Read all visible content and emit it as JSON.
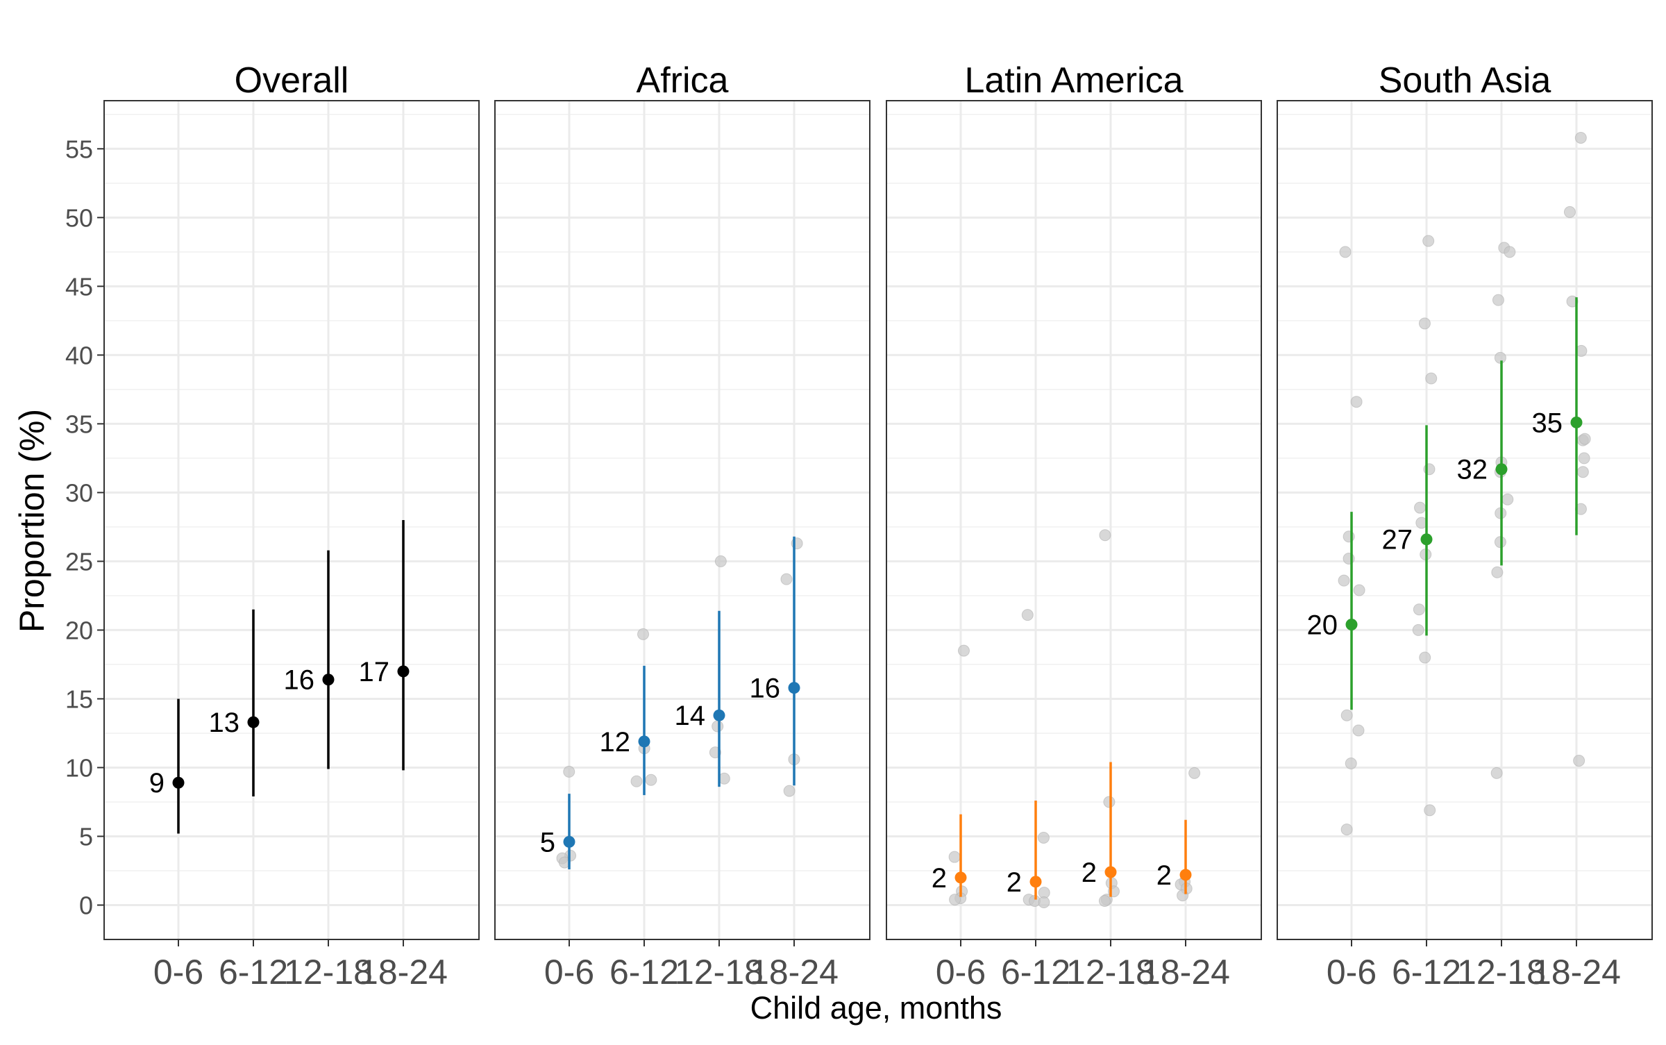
{
  "chart_data": {
    "type": "scatter",
    "layout": "faceted point-range",
    "ylabel": "Proportion (%)",
    "xlabel": "Child age, months",
    "categories": [
      "0-6",
      "6-12",
      "12-18",
      "18-24"
    ],
    "ylim": [
      -2.5,
      58.5
    ],
    "yticks": [
      0,
      5,
      10,
      15,
      20,
      25,
      30,
      35,
      40,
      45,
      50,
      55
    ],
    "grid": true,
    "panels": [
      {
        "title": "Overall",
        "color": "#000000",
        "estimates": [
          {
            "category": "0-6",
            "value": 8.9,
            "lower": 5.2,
            "upper": 15.0,
            "label": "9"
          },
          {
            "category": "6-12",
            "value": 13.3,
            "lower": 7.9,
            "upper": 21.5,
            "label": "13"
          },
          {
            "category": "12-18",
            "value": 16.4,
            "lower": 9.9,
            "upper": 25.8,
            "label": "16"
          },
          {
            "category": "18-24",
            "value": 17.0,
            "lower": 9.8,
            "upper": 28.0,
            "label": "17"
          }
        ],
        "studies": []
      },
      {
        "title": "Africa",
        "color": "#1f77b4",
        "estimates": [
          {
            "category": "0-6",
            "value": 4.6,
            "lower": 2.6,
            "upper": 8.1,
            "label": "5"
          },
          {
            "category": "6-12",
            "value": 11.9,
            "lower": 8.0,
            "upper": 17.4,
            "label": "12"
          },
          {
            "category": "12-18",
            "value": 13.8,
            "lower": 8.6,
            "upper": 21.4,
            "label": "14"
          },
          {
            "category": "18-24",
            "value": 15.8,
            "lower": 8.7,
            "upper": 26.8,
            "label": "16"
          }
        ],
        "studies": [
          {
            "category": "0-6",
            "values": [
              9.7,
              3.6,
              3.4,
              3.1
            ]
          },
          {
            "category": "6-12",
            "values": [
              19.7,
              11.4,
              9.0,
              9.1
            ]
          },
          {
            "category": "12-18",
            "values": [
              25.0,
              13.0,
              11.1,
              9.2
            ]
          },
          {
            "category": "18-24",
            "values": [
              26.3,
              23.7,
              10.6,
              8.3
            ]
          }
        ]
      },
      {
        "title": "Latin America",
        "color": "#ff7f0e",
        "estimates": [
          {
            "category": "0-6",
            "value": 2.0,
            "lower": 0.6,
            "upper": 6.6,
            "label": "2"
          },
          {
            "category": "6-12",
            "value": 1.7,
            "lower": 0.4,
            "upper": 7.6,
            "label": "2"
          },
          {
            "category": "12-18",
            "value": 2.4,
            "lower": 0.6,
            "upper": 10.4,
            "label": "2"
          },
          {
            "category": "18-24",
            "value": 2.2,
            "lower": 0.8,
            "upper": 6.2,
            "label": "2"
          }
        ],
        "studies": [
          {
            "category": "0-6",
            "values": [
              18.5,
              3.5,
              1.0,
              0.5,
              0.4
            ]
          },
          {
            "category": "6-12",
            "values": [
              21.1,
              4.9,
              0.9,
              0.4,
              0.3,
              0.2
            ]
          },
          {
            "category": "12-18",
            "values": [
              26.9,
              7.5,
              1.6,
              1.0,
              0.4,
              0.3
            ]
          },
          {
            "category": "18-24",
            "values": [
              9.6,
              1.7,
              1.5,
              1.2,
              0.7
            ]
          }
        ]
      },
      {
        "title": "South Asia",
        "color": "#2ca02c",
        "estimates": [
          {
            "category": "0-6",
            "value": 20.4,
            "lower": 14.2,
            "upper": 28.6,
            "label": "20"
          },
          {
            "category": "6-12",
            "value": 26.6,
            "lower": 19.6,
            "upper": 34.9,
            "label": "27"
          },
          {
            "category": "12-18",
            "value": 31.7,
            "lower": 24.7,
            "upper": 39.6,
            "label": "32"
          },
          {
            "category": "18-24",
            "value": 35.1,
            "lower": 26.9,
            "upper": 44.2,
            "label": "35"
          }
        ],
        "studies": [
          {
            "category": "0-6",
            "values": [
              47.5,
              36.6,
              26.8,
              25.2,
              23.6,
              22.9,
              13.8,
              12.7,
              10.3,
              5.5
            ]
          },
          {
            "category": "6-12",
            "values": [
              48.3,
              42.3,
              38.3,
              31.7,
              28.9,
              27.8,
              25.5,
              21.5,
              20.0,
              18.0,
              6.9
            ]
          },
          {
            "category": "12-18",
            "values": [
              47.8,
              47.5,
              44.0,
              39.8,
              32.2,
              31.5,
              29.5,
              28.5,
              26.4,
              24.2,
              9.6
            ]
          },
          {
            "category": "18-24",
            "values": [
              55.8,
              50.4,
              43.9,
              40.3,
              33.8,
              33.9,
              32.5,
              31.5,
              28.8,
              10.5
            ]
          }
        ]
      }
    ]
  }
}
